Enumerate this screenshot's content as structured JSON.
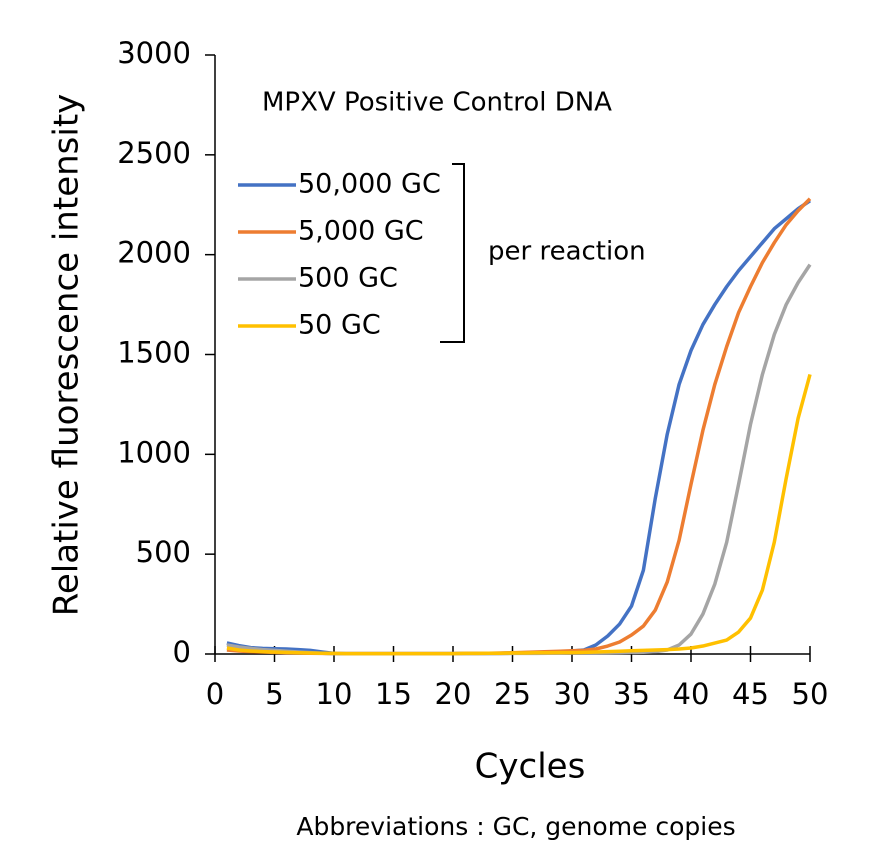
{
  "chart_data": {
    "type": "line",
    "title": "MPXV Positive Control DNA",
    "x_label": "Cycles",
    "y_label": "Relative fluorescence intensity",
    "annotation": "per reaction",
    "footnote": "Abbreviations : GC, genome copies",
    "x": [
      1,
      2,
      3,
      4,
      5,
      6,
      7,
      8,
      9,
      10,
      11,
      12,
      13,
      14,
      15,
      16,
      17,
      18,
      19,
      20,
      21,
      22,
      23,
      24,
      25,
      26,
      27,
      28,
      29,
      30,
      31,
      32,
      33,
      34,
      35,
      36,
      37,
      38,
      39,
      40,
      41,
      42,
      43,
      44,
      45,
      46,
      47,
      48,
      49,
      50
    ],
    "series": [
      {
        "name": "50,000 GC",
        "color": "#4472c4",
        "values": [
          55,
          42,
          32,
          28,
          26,
          25,
          22,
          18,
          10,
          3,
          2,
          2,
          2,
          2,
          2,
          2,
          2,
          2,
          2,
          2,
          3,
          3,
          3,
          4,
          5,
          6,
          7,
          8,
          10,
          15,
          20,
          45,
          90,
          150,
          240,
          420,
          780,
          1100,
          1350,
          1520,
          1650,
          1750,
          1840,
          1920,
          1990,
          2060,
          2130,
          2180,
          2230,
          2270
        ]
      },
      {
        "name": "5,000 GC",
        "color": "#ed7d31",
        "values": [
          20,
          15,
          12,
          10,
          8,
          6,
          5,
          4,
          3,
          2,
          2,
          2,
          2,
          2,
          2,
          2,
          2,
          2,
          2,
          2,
          3,
          3,
          4,
          5,
          6,
          8,
          10,
          12,
          14,
          16,
          18,
          25,
          40,
          60,
          95,
          140,
          220,
          360,
          570,
          850,
          1120,
          1350,
          1540,
          1710,
          1840,
          1960,
          2060,
          2150,
          2220,
          2280
        ]
      },
      {
        "name": "500 GC",
        "color": "#a5a5a5",
        "values": [
          45,
          35,
          28,
          22,
          18,
          14,
          10,
          7,
          4,
          2,
          2,
          2,
          2,
          2,
          2,
          2,
          2,
          2,
          2,
          2,
          2,
          2,
          2,
          2,
          3,
          3,
          3,
          4,
          4,
          5,
          5,
          5,
          6,
          7,
          8,
          9,
          12,
          20,
          45,
          100,
          200,
          350,
          560,
          850,
          1150,
          1400,
          1600,
          1750,
          1860,
          1950
        ]
      },
      {
        "name": "50 GC",
        "color": "#ffc000",
        "values": [
          30,
          20,
          15,
          12,
          10,
          8,
          6,
          5,
          4,
          3,
          2,
          2,
          2,
          2,
          2,
          2,
          2,
          2,
          2,
          2,
          3,
          3,
          4,
          4,
          5,
          5,
          6,
          6,
          7,
          7,
          8,
          10,
          12,
          14,
          16,
          18,
          20,
          22,
          25,
          30,
          40,
          55,
          70,
          110,
          180,
          320,
          560,
          880,
          1180,
          1400
        ]
      }
    ],
    "xlim": [
      0,
      50
    ],
    "xticks": [
      0,
      5,
      10,
      15,
      20,
      25,
      30,
      35,
      40,
      45,
      50
    ],
    "ylim": [
      0,
      3000
    ],
    "yticks": [
      0,
      500,
      1000,
      1500,
      2000,
      2500,
      3000
    ],
    "grid": false
  }
}
